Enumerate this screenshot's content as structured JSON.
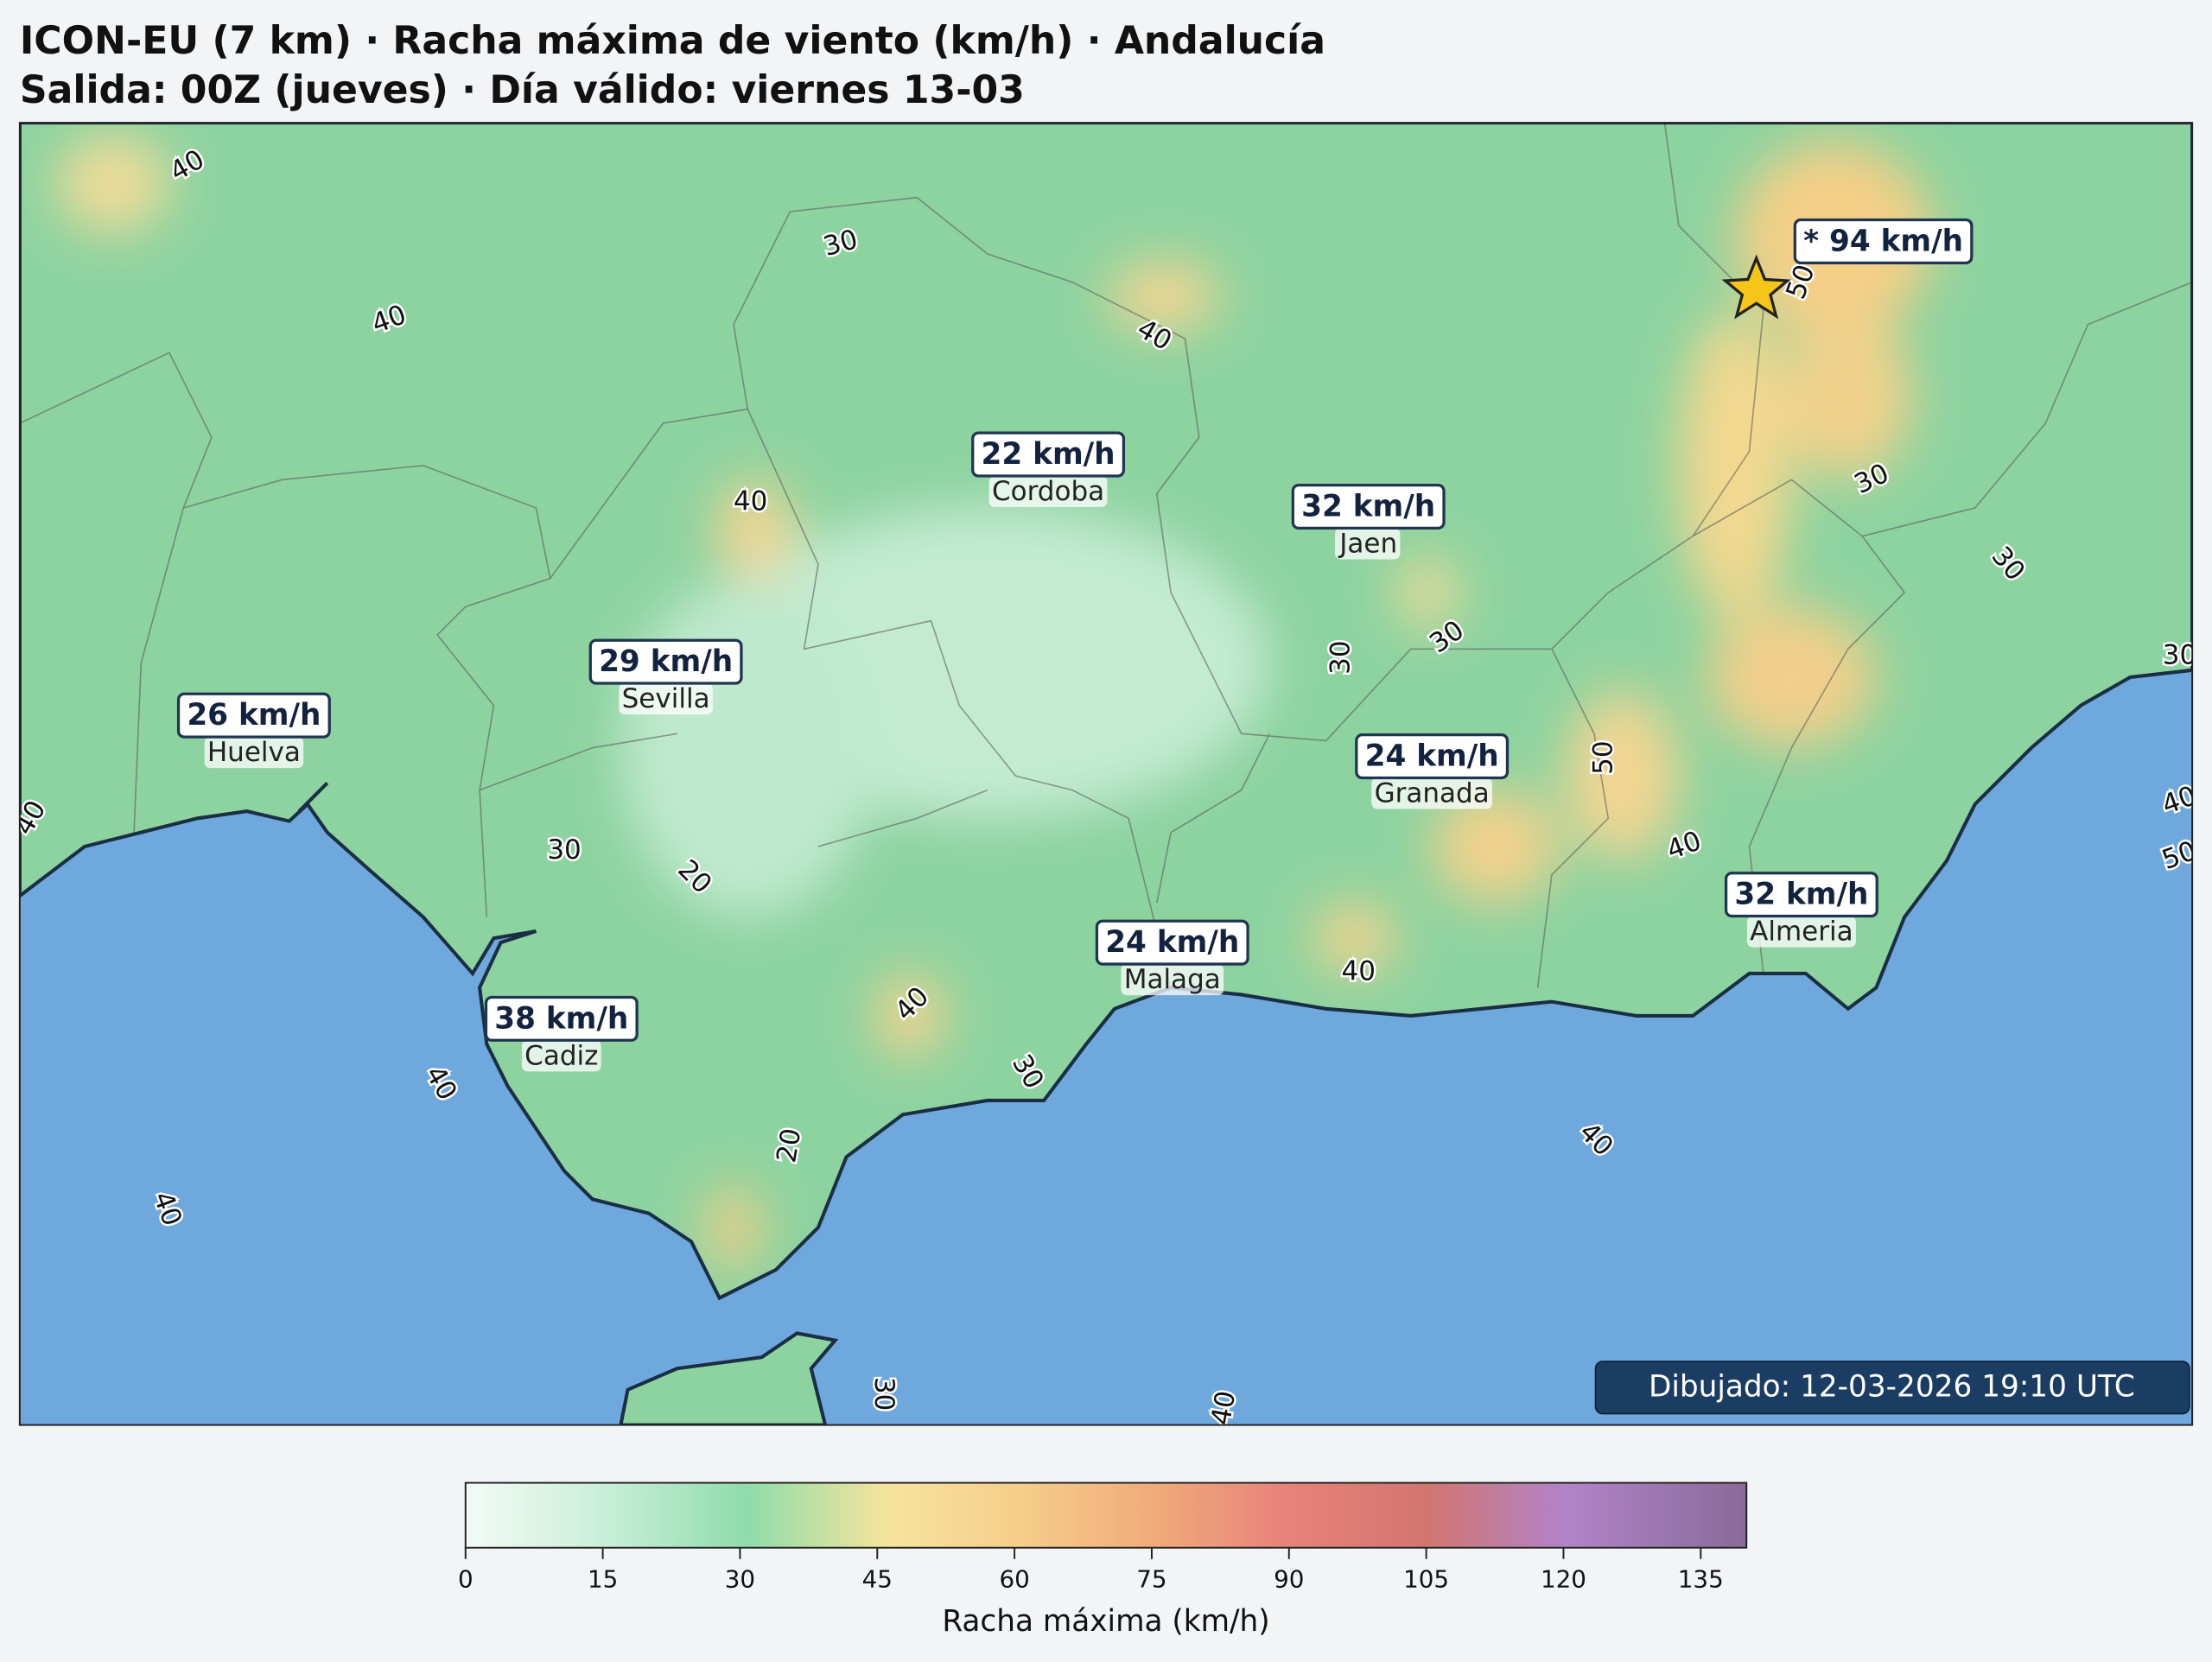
{
  "header": {
    "title": "ICON-EU (7 km) · Racha máxima de viento (km/h) · Andalucía",
    "subtitle": "Salida: 00Z (jueves) · Día válido: viernes 13-03"
  },
  "map": {
    "cities": [
      {
        "name": "Cordoba",
        "value": "22 km/h"
      },
      {
        "name": "Jaen",
        "value": "32 km/h"
      },
      {
        "name": "Sevilla",
        "value": "29 km/h"
      },
      {
        "name": "Huelva",
        "value": "26 km/h"
      },
      {
        "name": "Granada",
        "value": "24 km/h"
      },
      {
        "name": "Almeria",
        "value": "32 km/h"
      },
      {
        "name": "Malaga",
        "value": "24 km/h"
      },
      {
        "name": "Cadiz",
        "value": "38 km/h"
      }
    ],
    "max_marker": {
      "label": "* 94 km/h"
    },
    "contour_labels": [
      40,
      30,
      40,
      40,
      40,
      30,
      30,
      30,
      30,
      50,
      40,
      30,
      20,
      40,
      40,
      40,
      30,
      20,
      40,
      40,
      40,
      30,
      40,
      40,
      50,
      50,
      30
    ],
    "timestamp": "Dibujado: 12-03-2026 19:10 UTC"
  },
  "colorbar": {
    "range": [
      0,
      140
    ],
    "ticks": [
      0,
      15,
      30,
      45,
      60,
      75,
      90,
      105,
      120,
      135
    ],
    "label": "Racha máxima (km/h)"
  }
}
